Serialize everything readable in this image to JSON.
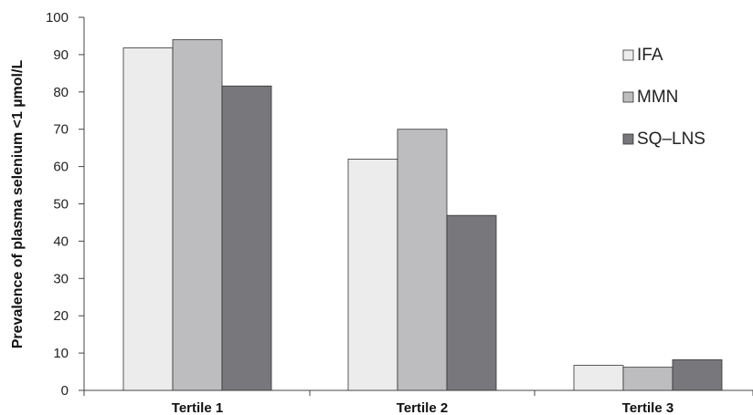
{
  "chart_data": {
    "type": "bar",
    "title": "",
    "xlabel": "",
    "ylabel": "Prevalence of plasma selenium <1 µmol/L",
    "ylim": [
      0,
      100
    ],
    "yticks": [
      0,
      10,
      20,
      30,
      40,
      50,
      60,
      70,
      80,
      90,
      100
    ],
    "categories": [
      "Tertile 1",
      "Tertile 2",
      "Tertile 3"
    ],
    "series": [
      {
        "name": "IFA",
        "color": "#ececec",
        "values": [
          91.8,
          62.0,
          6.7
        ]
      },
      {
        "name": "MMN",
        "color": "#bdbdbf",
        "values": [
          94.0,
          70.0,
          6.2
        ]
      },
      {
        "name": "SQ–LNS",
        "color": "#78787c",
        "values": [
          81.6,
          46.9,
          8.2
        ]
      }
    ],
    "grid": false,
    "legend_position": "top-right"
  }
}
